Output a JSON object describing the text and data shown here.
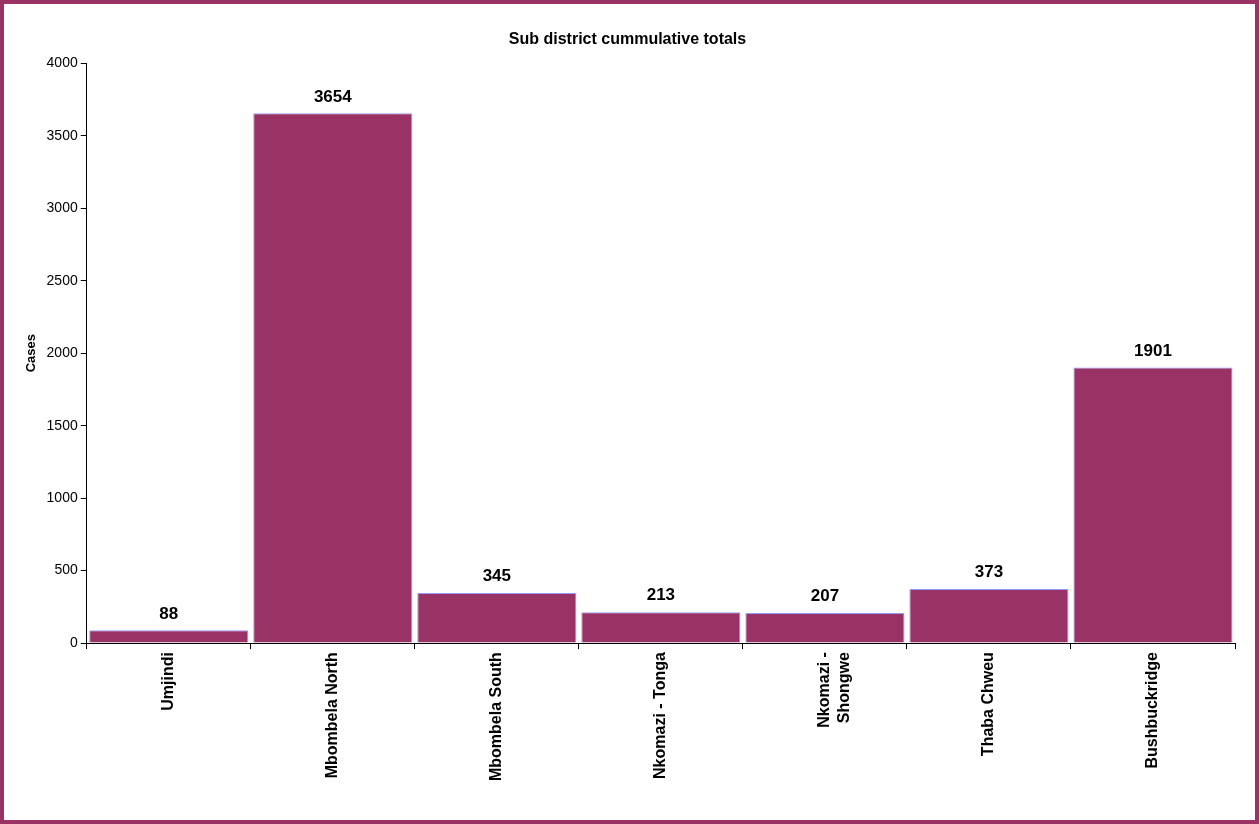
{
  "chart_data": {
    "type": "bar",
    "title": "Sub district cummulative totals",
    "ylabel": "Cases",
    "categories": [
      "Umjindi",
      "Mbombela North",
      "Mbombela South",
      "Nkomazi - Tonga",
      "Nkomazi - Shongwe",
      "Thaba Chweu",
      "Bushbuckridge"
    ],
    "values": [
      88,
      3654,
      345,
      213,
      207,
      373,
      1901
    ],
    "color": "#993366",
    "ylim": [
      0,
      4000
    ],
    "yticks": [
      0,
      500,
      1000,
      1500,
      2000,
      2500,
      3000,
      3500,
      4000
    ],
    "grid": false,
    "legend": false,
    "data_labels": true
  }
}
